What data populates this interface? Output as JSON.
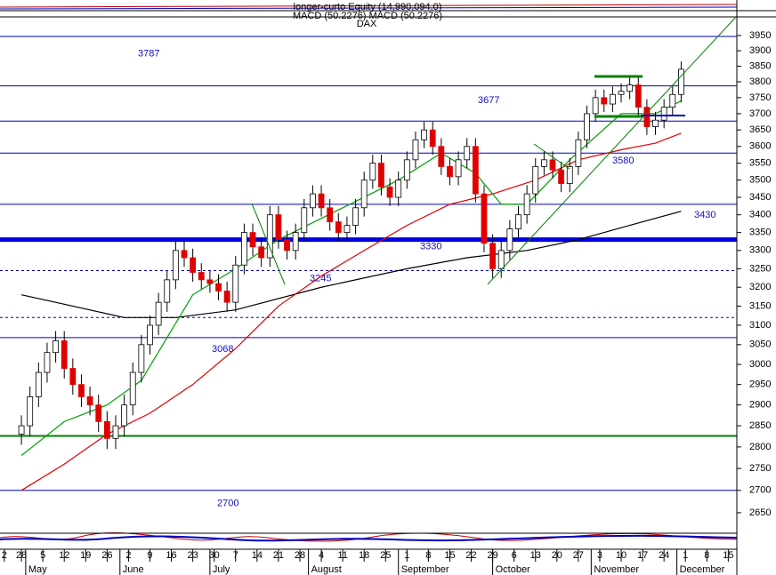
{
  "chart_data": {
    "type": "candlestick",
    "header": "longer-curto Equity (14,990,094.0)",
    "subtitle": "MACD (50.2276) MACD (50.2276)",
    "title": "DAX",
    "log_scale": true,
    "ylim": [
      2605,
      4009
    ],
    "yticks": [
      2650,
      2700,
      2750,
      2800,
      2850,
      2900,
      2950,
      3000,
      3050,
      3100,
      3150,
      3200,
      3250,
      3300,
      3350,
      3400,
      3450,
      3500,
      3550,
      3600,
      3650,
      3700,
      3750,
      3800,
      3850,
      3900,
      3950
    ],
    "xlim": [
      -5,
      167
    ],
    "xticks": [
      {
        "value": -4,
        "label": "2"
      },
      {
        "value": 0,
        "label": "28"
      },
      {
        "value": 5,
        "label": "5"
      },
      {
        "value": 10,
        "label": "12"
      },
      {
        "value": 15,
        "label": "19"
      },
      {
        "value": 20,
        "label": "26"
      },
      {
        "value": 25,
        "label": "2"
      },
      {
        "value": 30,
        "label": "9"
      },
      {
        "value": 35,
        "label": "16"
      },
      {
        "value": 40,
        "label": "23"
      },
      {
        "value": 45,
        "label": "30"
      },
      {
        "value": 50,
        "label": "7"
      },
      {
        "value": 55,
        "label": "14"
      },
      {
        "value": 60,
        "label": "21"
      },
      {
        "value": 65,
        "label": "28"
      },
      {
        "value": 70,
        "label": "4"
      },
      {
        "value": 75,
        "label": "11"
      },
      {
        "value": 80,
        "label": "18"
      },
      {
        "value": 85,
        "label": "25"
      },
      {
        "value": 90,
        "label": "1"
      },
      {
        "value": 95,
        "label": "8"
      },
      {
        "value": 100,
        "label": "15"
      },
      {
        "value": 105,
        "label": "22"
      },
      {
        "value": 110,
        "label": "29"
      },
      {
        "value": 115,
        "label": "6"
      },
      {
        "value": 120,
        "label": "13"
      },
      {
        "value": 125,
        "label": "20"
      },
      {
        "value": 130,
        "label": "27"
      },
      {
        "value": 135,
        "label": "3"
      },
      {
        "value": 140,
        "label": "10"
      },
      {
        "value": 145,
        "label": "17"
      },
      {
        "value": 150,
        "label": "24"
      },
      {
        "value": 155,
        "label": "1"
      },
      {
        "value": 160,
        "label": "8"
      },
      {
        "value": 165,
        "label": "15"
      }
    ],
    "month_ticks": [
      {
        "value": 1,
        "label": "May"
      },
      {
        "value": 23,
        "label": "June"
      },
      {
        "value": 44,
        "label": "July"
      },
      {
        "value": 67,
        "label": "August"
      },
      {
        "value": 88,
        "label": "September"
      },
      {
        "value": 110,
        "label": "October"
      },
      {
        "value": 133,
        "label": "November"
      },
      {
        "value": 153,
        "label": "December"
      }
    ],
    "x": [
      0,
      2,
      4,
      6,
      8,
      10,
      12,
      14,
      16,
      18,
      20,
      22,
      24,
      26,
      28,
      30,
      32,
      34,
      36,
      38,
      40,
      42,
      44,
      46,
      48,
      50,
      52,
      54,
      56,
      58,
      60,
      62,
      64,
      66,
      68,
      70,
      72,
      74,
      76,
      78,
      80,
      82,
      84,
      86,
      88,
      90,
      92,
      94,
      96,
      98,
      100,
      102,
      104,
      106,
      108,
      110,
      112,
      114,
      116,
      118,
      120,
      122,
      124,
      126,
      128,
      130,
      132,
      134,
      136,
      138,
      140,
      142,
      144,
      146,
      148,
      150,
      152,
      154
    ],
    "open": [
      2830,
      2850,
      2920,
      2980,
      3030,
      3060,
      2990,
      2950,
      2920,
      2900,
      2860,
      2820,
      2850,
      2900,
      2980,
      3050,
      3100,
      3160,
      3220,
      3300,
      3280,
      3240,
      3220,
      3210,
      3190,
      3160,
      3260,
      3350,
      3310,
      3280,
      3400,
      3330,
      3300,
      3350,
      3420,
      3460,
      3420,
      3380,
      3350,
      3370,
      3420,
      3500,
      3550,
      3480,
      3450,
      3500,
      3560,
      3620,
      3650,
      3600,
      3540,
      3510,
      3560,
      3600,
      3460,
      3320,
      3250,
      3300,
      3360,
      3400,
      3460,
      3540,
      3560,
      3530,
      3490,
      3540,
      3620,
      3700,
      3750,
      3730,
      3760,
      3770,
      3790,
      3720,
      3660,
      3680,
      3720,
      3760
    ],
    "high": [
      2875,
      2945,
      3005,
      3055,
      3085,
      3085,
      3015,
      2975,
      2945,
      2925,
      2885,
      2875,
      2925,
      3005,
      3075,
      3125,
      3185,
      3245,
      3325,
      3325,
      3305,
      3265,
      3245,
      3235,
      3215,
      3285,
      3375,
      3375,
      3335,
      3425,
      3425,
      3355,
      3375,
      3445,
      3485,
      3485,
      3445,
      3405,
      3395,
      3445,
      3525,
      3575,
      3575,
      3505,
      3525,
      3585,
      3645,
      3675,
      3675,
      3625,
      3565,
      3585,
      3625,
      3625,
      3485,
      3345,
      3325,
      3385,
      3425,
      3485,
      3565,
      3585,
      3585,
      3555,
      3565,
      3645,
      3725,
      3775,
      3775,
      3785,
      3795,
      3815,
      3815,
      3745,
      3705,
      3745,
      3785,
      3865
    ],
    "low": [
      2805,
      2825,
      2895,
      2955,
      3005,
      2965,
      2925,
      2895,
      2875,
      2835,
      2795,
      2795,
      2825,
      2875,
      2955,
      3025,
      3075,
      3135,
      3195,
      3255,
      3215,
      3195,
      3185,
      3165,
      3135,
      3135,
      3235,
      3285,
      3255,
      3255,
      3305,
      3275,
      3275,
      3325,
      3395,
      3395,
      3355,
      3325,
      3325,
      3345,
      3395,
      3475,
      3455,
      3425,
      3425,
      3475,
      3535,
      3595,
      3575,
      3515,
      3485,
      3485,
      3535,
      3435,
      3295,
      3225,
      3225,
      3275,
      3335,
      3375,
      3435,
      3515,
      3505,
      3465,
      3465,
      3515,
      3595,
      3675,
      3705,
      3705,
      3735,
      3745,
      3695,
      3635,
      3635,
      3655,
      3695,
      3735
    ],
    "close": [
      2850,
      2920,
      2980,
      3030,
      3060,
      2990,
      2950,
      2920,
      2900,
      2860,
      2820,
      2850,
      2900,
      2980,
      3050,
      3100,
      3160,
      3220,
      3300,
      3280,
      3240,
      3220,
      3210,
      3190,
      3160,
      3260,
      3350,
      3310,
      3280,
      3400,
      3330,
      3300,
      3350,
      3420,
      3460,
      3420,
      3380,
      3350,
      3370,
      3420,
      3500,
      3550,
      3480,
      3450,
      3500,
      3560,
      3620,
      3650,
      3600,
      3540,
      3510,
      3560,
      3600,
      3460,
      3320,
      3250,
      3300,
      3360,
      3400,
      3460,
      3540,
      3560,
      3530,
      3490,
      3540,
      3620,
      3700,
      3750,
      3730,
      3760,
      3770,
      3790,
      3720,
      3660,
      3680,
      3720,
      3760,
      3840
    ],
    "up_color": "#ffffff",
    "down_color": "#e00000",
    "lines": [
      {
        "color": "#000000",
        "x": [
          0,
          12,
          24,
          36,
          50,
          70,
          90,
          104,
          118,
          130,
          142,
          154
        ],
        "values": [
          3180,
          3150,
          3120,
          3120,
          3140,
          3200,
          3250,
          3280,
          3300,
          3330,
          3370,
          3410
        ]
      },
      {
        "color": "#e00000",
        "x": [
          0,
          10,
          20,
          30,
          40,
          50,
          60,
          70,
          80,
          90,
          100,
          110,
          120,
          130,
          140,
          148,
          154
        ],
        "values": [
          2700,
          2760,
          2830,
          2880,
          2950,
          3040,
          3150,
          3230,
          3300,
          3370,
          3430,
          3460,
          3500,
          3560,
          3590,
          3610,
          3640
        ]
      },
      {
        "color": "#00a000",
        "x": [
          0,
          10,
          20,
          28,
          40,
          50,
          60,
          75,
          88,
          98,
          106,
          112,
          118,
          128,
          140,
          148,
          154
        ],
        "values": [
          2780,
          2860,
          2900,
          2960,
          3180,
          3250,
          3330,
          3420,
          3500,
          3580,
          3520,
          3430,
          3430,
          3560,
          3700,
          3700,
          3740
        ]
      }
    ],
    "levels": [
      {
        "value": 3947,
        "color": "#0000c0",
        "width": 1,
        "dash": false
      },
      {
        "value": 3787,
        "color": "#0000c0",
        "width": 1,
        "dash": false
      },
      {
        "value": 3677,
        "color": "#0000c0",
        "width": 1,
        "dash": false
      },
      {
        "value": 3580,
        "color": "#0000c0",
        "width": 1,
        "dash": false
      },
      {
        "value": 3430,
        "color": "#0000c0",
        "width": 1,
        "dash": false
      },
      {
        "value": 3330,
        "color": "#0000e0",
        "width": 5,
        "dash": false
      },
      {
        "value": 3245,
        "color": "#0000c0",
        "width": 1,
        "dash": true
      },
      {
        "value": 3120,
        "color": "#0000c0",
        "width": 1,
        "dash": true
      },
      {
        "value": 3068,
        "color": "#0000c0",
        "width": 1,
        "dash": false
      },
      {
        "value": 2826,
        "color": "#008000",
        "width": 2,
        "dash": false
      },
      {
        "value": 2700,
        "color": "#0000c0",
        "width": 1,
        "dash": false
      }
    ],
    "level_labels": [
      3787,
      3677,
      3580,
      3430,
      3330,
      3245,
      3068,
      2700
    ]
  }
}
